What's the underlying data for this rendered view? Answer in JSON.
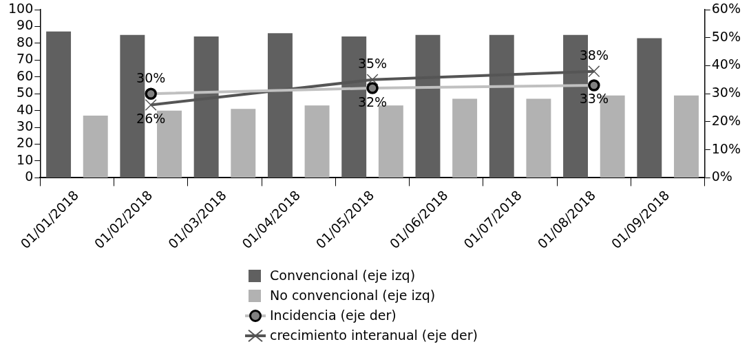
{
  "chart_data": {
    "type": "bar",
    "categories": [
      "01/01/2018",
      "01/02/2018",
      "01/03/2018",
      "01/04/2018",
      "01/05/2018",
      "01/06/2018",
      "01/07/2018",
      "01/08/2018",
      "01/09/2018"
    ],
    "series": [
      {
        "name": "Convencional (eje izq)",
        "color": "#606060",
        "values": [
          87,
          85,
          84,
          86,
          84,
          85,
          85,
          85,
          83
        ]
      },
      {
        "name": "No convencional (eje izq)",
        "color": "#b2b2b2",
        "values": [
          37,
          40,
          41,
          43,
          43,
          47,
          47,
          49,
          49
        ]
      },
      {
        "name": "Incidencia (eje der)",
        "type": "line",
        "axis": "y2",
        "marker": "circle",
        "color": "#c0c0c0",
        "values": [
          null,
          30,
          null,
          null,
          32,
          null,
          null,
          33,
          null
        ],
        "value_labels": [
          null,
          "30%",
          null,
          null,
          "32%",
          null,
          null,
          "33%",
          null
        ]
      },
      {
        "name": "crecimiento interanual (eje der)",
        "type": "line",
        "axis": "y2",
        "marker": "cross",
        "color": "#555555",
        "values": [
          null,
          26,
          null,
          null,
          35,
          null,
          null,
          38,
          null
        ],
        "value_labels": [
          null,
          "26%",
          null,
          null,
          "35%",
          null,
          null,
          "38%",
          null
        ]
      }
    ],
    "ylim": [
      0,
      100
    ],
    "yticks": [
      0,
      10,
      20,
      30,
      40,
      50,
      60,
      70,
      80,
      90,
      100
    ],
    "y2lim": [
      0,
      60
    ],
    "y2ticks": [
      {
        "value": 0,
        "label": "0%"
      },
      {
        "value": 10,
        "label": "10%"
      },
      {
        "value": 20,
        "label": "20%"
      },
      {
        "value": 30,
        "label": "30%"
      },
      {
        "value": 40,
        "label": "40%"
      },
      {
        "value": 50,
        "label": "50%"
      },
      {
        "value": 60,
        "label": "60%"
      }
    ],
    "grid": false,
    "legend": "bottom"
  }
}
